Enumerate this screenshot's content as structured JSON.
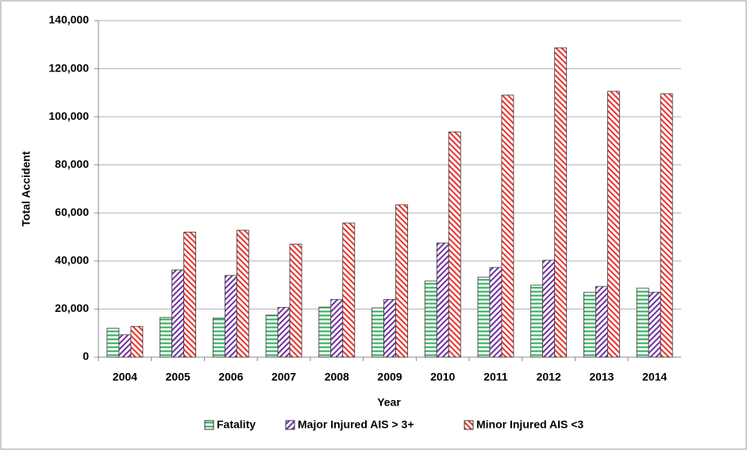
{
  "chart_data": {
    "type": "bar",
    "x_label": "Year",
    "y_label": "Total Accident",
    "categories": [
      "2004",
      "2005",
      "2006",
      "2007",
      "2008",
      "2009",
      "2010",
      "2011",
      "2012",
      "2013",
      "2014"
    ],
    "series": [
      {
        "name": "Fatality",
        "color": "#2eaa5a",
        "pattern": "horizontal",
        "values": [
          12000,
          16500,
          16200,
          17500,
          20800,
          20500,
          31700,
          33300,
          30000,
          27000,
          28700
        ]
      },
      {
        "name": "Major Injured AIS > 3+",
        "color": "#7030a0",
        "pattern": "diagonal",
        "values": [
          9300,
          36300,
          34000,
          20700,
          24000,
          24000,
          47500,
          37300,
          40300,
          29400,
          27000
        ]
      },
      {
        "name": "Minor Injured AIS <3",
        "color": "#e8312a",
        "pattern": "diagonal",
        "values": [
          12800,
          52000,
          52800,
          47000,
          55800,
          63400,
          93700,
          109000,
          128700,
          110600,
          109600
        ]
      }
    ],
    "ylim": [
      0,
      140000
    ],
    "yticks": [
      0,
      {
        "value": 20000,
        "label": "20,000"
      },
      {
        "value": 40000,
        "label": "40,000"
      },
      {
        "value": 60000,
        "label": "60,000"
      },
      {
        "value": 80000,
        "label": "80,000"
      },
      {
        "value": 100000,
        "label": "100,000"
      },
      {
        "value": 120000,
        "label": "120,000"
      },
      {
        "value": 140000,
        "label": "140,000"
      }
    ],
    "grid": true,
    "legend": "bottom"
  }
}
